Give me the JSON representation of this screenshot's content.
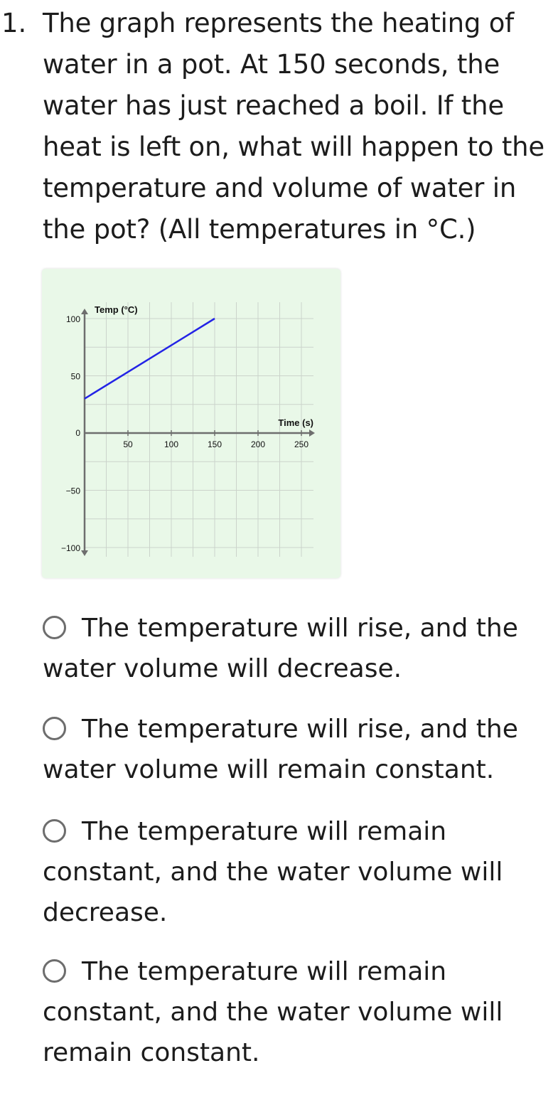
{
  "question": {
    "number": "1.",
    "text": "The graph represents the heating of water in a pot. At 150 seconds, the water has just reached a boil. If the heat is left on, what will happen to the temperature and volume of water in the pot? (All temperatures in °C.)"
  },
  "chart_data": {
    "type": "line",
    "xlabel": "Time (s)",
    "ylabel": "Temp (°C)",
    "xlim": [
      0,
      260
    ],
    "ylim": [
      -100,
      100
    ],
    "x_ticks": [
      50,
      100,
      150,
      200,
      250
    ],
    "y_ticks": [
      100,
      50,
      0,
      -50,
      -100
    ],
    "grid": true,
    "series": [
      {
        "x": [
          0,
          150
        ],
        "y": [
          30,
          100
        ],
        "color": "#2323e6"
      }
    ],
    "colors": {
      "background": "#e9f8e8",
      "grid": "#cbd3cb",
      "axis": "#6e6e6e",
      "line": "#2323e6"
    }
  },
  "options": [
    {
      "text": "The temperature will rise, and the water volume will decrease."
    },
    {
      "text": "The temperature will rise, and the water volume will remain constant."
    },
    {
      "text": "The temperature will remain constant, and the water volume will decrease."
    },
    {
      "text": "The temperature will remain constant, and the water volume will remain constant."
    }
  ]
}
